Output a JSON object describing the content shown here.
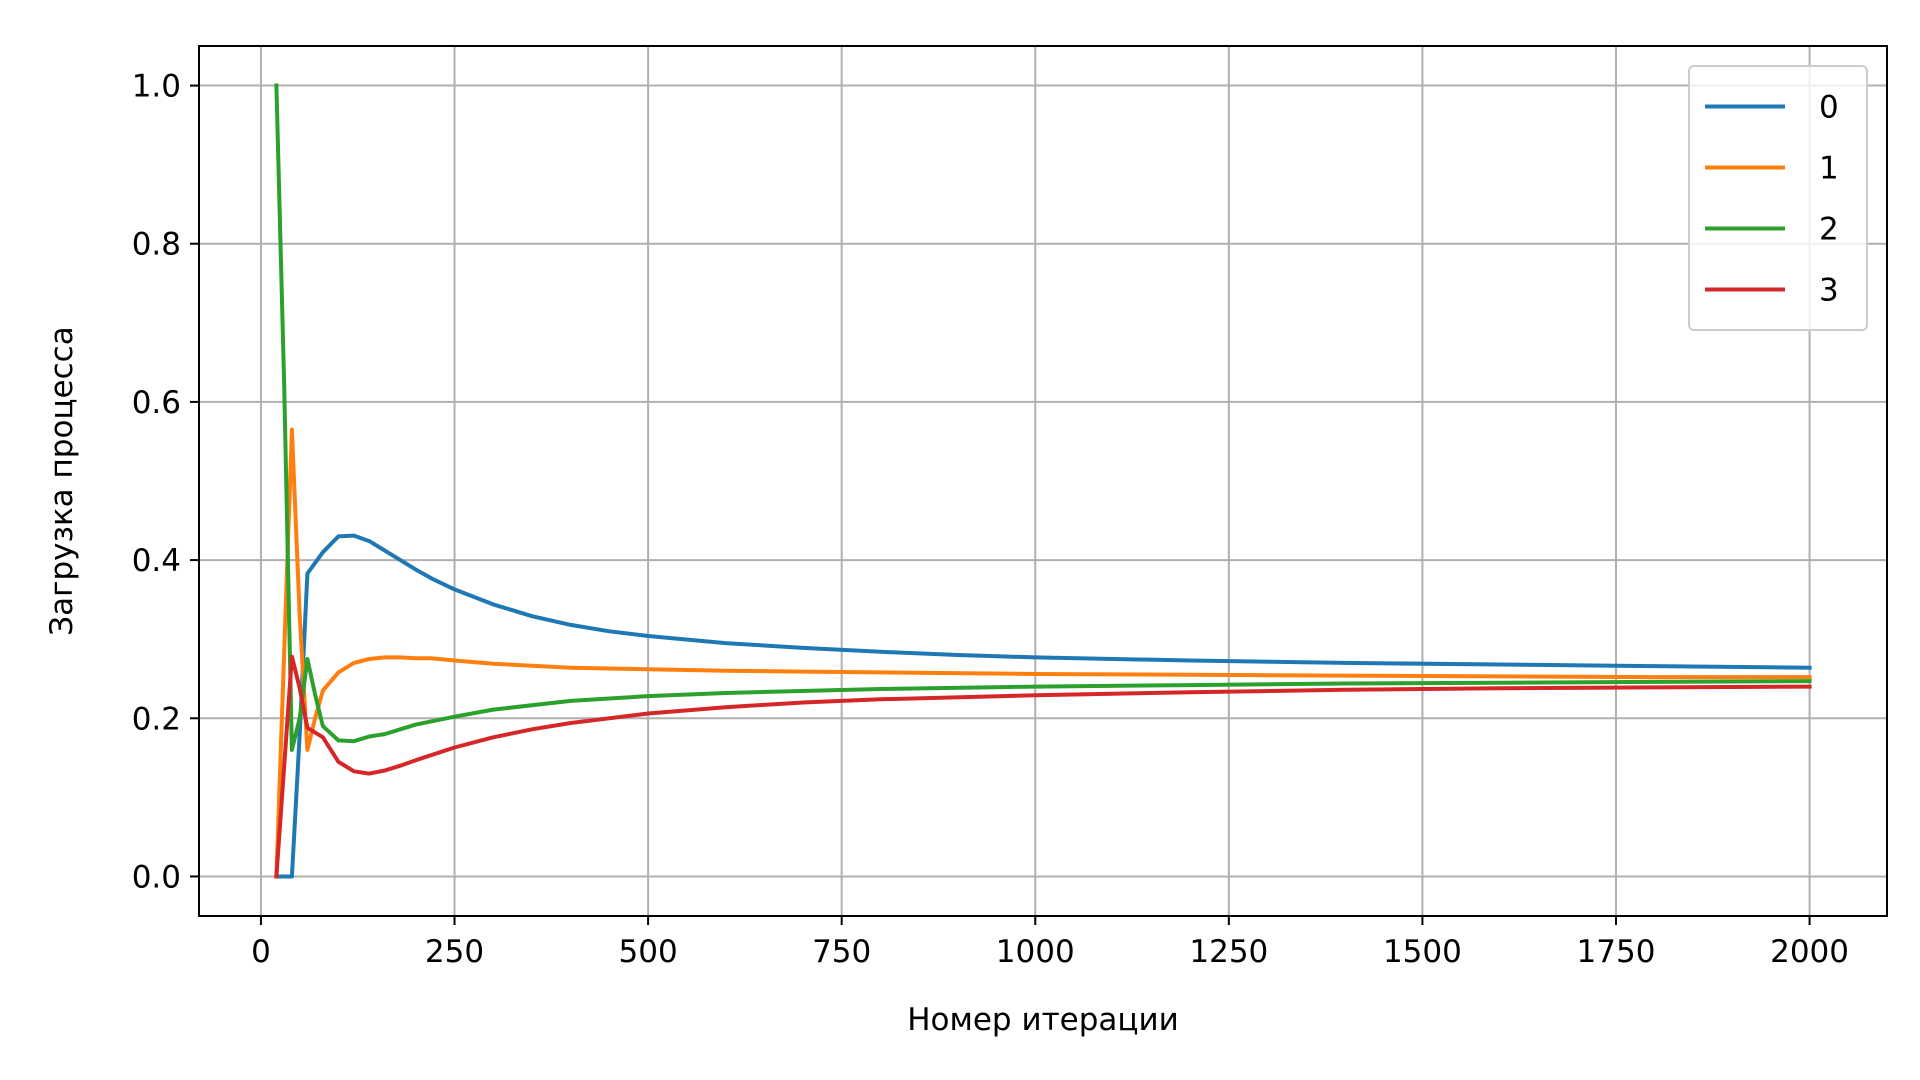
{
  "chart_data": {
    "type": "line",
    "xlabel": "Номер итерации",
    "ylabel": "Загрузка процесса",
    "xlim": [
      -80,
      2100
    ],
    "ylim": [
      -0.05,
      1.05
    ],
    "xticks": [
      0,
      250,
      500,
      750,
      1000,
      1250,
      1500,
      1750,
      2000
    ],
    "xtick_labels": [
      "0",
      "250",
      "500",
      "750",
      "1000",
      "1250",
      "1500",
      "1750",
      "2000"
    ],
    "yticks": [
      0.0,
      0.2,
      0.4,
      0.6,
      0.8,
      1.0
    ],
    "ytick_labels": [
      "0.0",
      "0.2",
      "0.4",
      "0.6",
      "0.8",
      "1.0"
    ],
    "grid": true,
    "legend_position": "top-right",
    "series": [
      {
        "name": "0",
        "color": "#1f77b4",
        "x": [
          20,
          40,
          50,
          60,
          80,
          100,
          120,
          140,
          160,
          180,
          200,
          220,
          250,
          300,
          350,
          400,
          450,
          500,
          600,
          700,
          800,
          900,
          1000,
          1200,
          1400,
          1600,
          1800,
          2000
        ],
        "y": [
          0.0,
          0.0,
          0.18,
          0.383,
          0.41,
          0.43,
          0.431,
          0.424,
          0.412,
          0.4,
          0.388,
          0.377,
          0.363,
          0.344,
          0.329,
          0.318,
          0.31,
          0.304,
          0.295,
          0.289,
          0.284,
          0.28,
          0.277,
          0.273,
          0.27,
          0.268,
          0.266,
          0.264
        ]
      },
      {
        "name": "1",
        "color": "#ff7f0e",
        "x": [
          20,
          40,
          50,
          60,
          70,
          80,
          100,
          120,
          140,
          160,
          180,
          200,
          220,
          250,
          300,
          400,
          500,
          600,
          700,
          800,
          1000,
          1200,
          1400,
          1600,
          1800,
          2000
        ],
        "y": [
          0.0,
          0.565,
          0.33,
          0.16,
          0.2,
          0.235,
          0.258,
          0.27,
          0.275,
          0.277,
          0.277,
          0.276,
          0.276,
          0.273,
          0.269,
          0.264,
          0.262,
          0.26,
          0.259,
          0.258,
          0.256,
          0.255,
          0.254,
          0.253,
          0.252,
          0.252
        ]
      },
      {
        "name": "2",
        "color": "#2ca02c",
        "x": [
          20,
          30,
          40,
          50,
          60,
          70,
          80,
          100,
          120,
          140,
          160,
          180,
          200,
          250,
          300,
          400,
          500,
          600,
          800,
          1000,
          1200,
          1400,
          1600,
          1800,
          2000
        ],
        "y": [
          1.0,
          0.62,
          0.16,
          0.2,
          0.275,
          0.23,
          0.19,
          0.172,
          0.171,
          0.177,
          0.18,
          0.186,
          0.192,
          0.202,
          0.211,
          0.222,
          0.228,
          0.232,
          0.237,
          0.24,
          0.242,
          0.244,
          0.245,
          0.246,
          0.247
        ]
      },
      {
        "name": "3",
        "color": "#d62728",
        "x": [
          20,
          30,
          40,
          50,
          60,
          80,
          100,
          120,
          140,
          160,
          180,
          200,
          250,
          300,
          350,
          400,
          500,
          600,
          700,
          800,
          1000,
          1200,
          1400,
          1600,
          1800,
          2000
        ],
        "y": [
          0.0,
          0.14,
          0.278,
          0.238,
          0.188,
          0.176,
          0.145,
          0.133,
          0.13,
          0.134,
          0.14,
          0.147,
          0.163,
          0.176,
          0.186,
          0.194,
          0.206,
          0.214,
          0.22,
          0.224,
          0.229,
          0.233,
          0.236,
          0.238,
          0.239,
          0.24
        ]
      }
    ]
  }
}
